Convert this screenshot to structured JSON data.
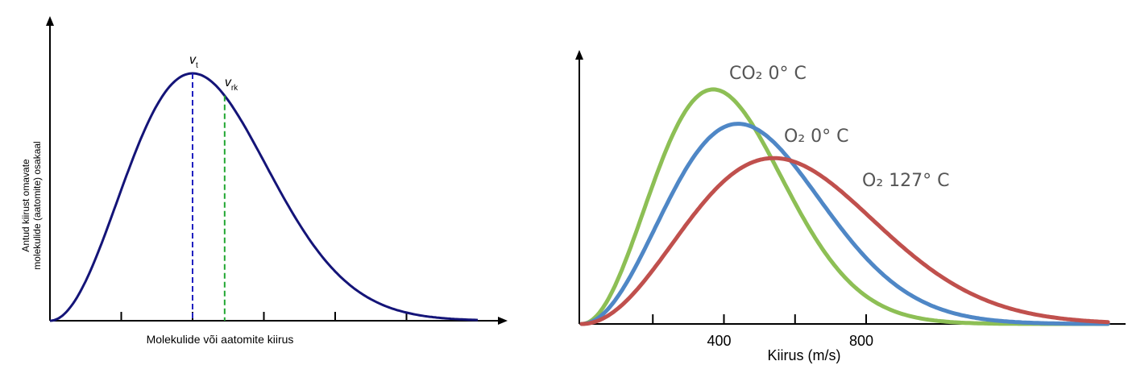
{
  "chart_data": [
    {
      "type": "line",
      "title": "",
      "xlabel": "Molekulide või aatomite kiirus",
      "ylabel_lines": [
        "Antud kiirust omavate",
        "molekulide (aatomite) osakaal"
      ],
      "xlim": [
        0,
        6
      ],
      "ylim": [
        0,
        1
      ],
      "x_ticks": [
        1,
        2,
        3,
        4,
        5
      ],
      "series": [
        {
          "name": "distribution",
          "color": "#141478",
          "x_peak": 2,
          "y_peak": 1
        }
      ],
      "markers": [
        {
          "name": "v",
          "sub": "t",
          "x": 2.0,
          "color": "#2020c0"
        },
        {
          "name": "v",
          "sub": "rk",
          "x": 2.45,
          "color": "#21a632"
        }
      ]
    },
    {
      "type": "line",
      "title": "",
      "xlabel": "Kiirus (m/s)",
      "ylabel": "",
      "xlim": [
        0,
        1480
      ],
      "ylim": [
        0,
        1
      ],
      "x_ticks": [
        200,
        400,
        600,
        800
      ],
      "x_tick_labels": [
        {
          "value": 400,
          "text": "400"
        },
        {
          "value": 800,
          "text": "800"
        }
      ],
      "series": [
        {
          "name": "CO₂ 0° C",
          "color": "#8dbf55",
          "x_peak": 370,
          "y_peak": 0.99
        },
        {
          "name": "O₂ 0° C",
          "color": "#4f87c6",
          "x_peak": 440,
          "y_peak": 0.845
        },
        {
          "name": "O₂ 127° C",
          "color": "#c0504d",
          "x_peak": 540,
          "y_peak": 0.7
        }
      ]
    }
  ]
}
